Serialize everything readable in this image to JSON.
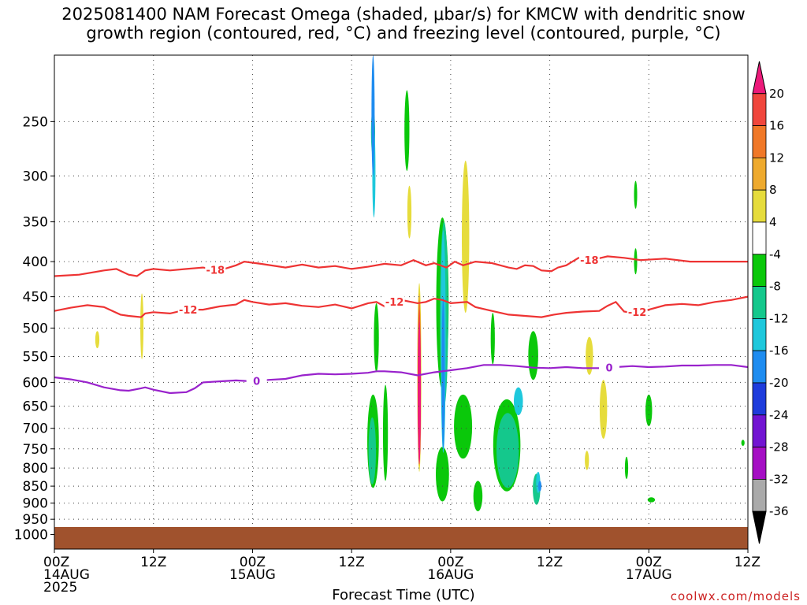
{
  "title": "2025081400 NAM Forecast Omega (shaded, μbar/s) for KMCW with dendritic snow\ngrowth region (contoured, red, °C) and freezing level (contoured, purple, °C)",
  "chart_data": {
    "type": "heatmap",
    "title": "2025081400 NAM Forecast Omega (shaded, μbar/s) for KMCW with dendritic snow growth region (contoured, red, °C) and freezing level (contoured, purple, °C)",
    "xlabel": "Forecast Time (UTC)",
    "x_hours_range": [
      0,
      84
    ],
    "x_ticks": [
      {
        "h": 0,
        "l1": "00Z",
        "l2": "14AUG",
        "l3": "2025"
      },
      {
        "h": 12,
        "l1": "12Z",
        "l2": "",
        "l3": ""
      },
      {
        "h": 24,
        "l1": "00Z",
        "l2": "15AUG",
        "l3": ""
      },
      {
        "h": 36,
        "l1": "12Z",
        "l2": "",
        "l3": ""
      },
      {
        "h": 48,
        "l1": "00Z",
        "l2": "16AUG",
        "l3": ""
      },
      {
        "h": 60,
        "l1": "12Z",
        "l2": "",
        "l3": ""
      },
      {
        "h": 72,
        "l1": "00Z",
        "l2": "17AUG",
        "l3": ""
      },
      {
        "h": 84,
        "l1": "12Z",
        "l2": "",
        "l3": ""
      }
    ],
    "y_label": "",
    "y_scale": "log-pressure",
    "y_range_hpa": [
      1050,
      200
    ],
    "y_ticks": [
      250,
      300,
      350,
      400,
      450,
      500,
      550,
      600,
      650,
      700,
      750,
      800,
      850,
      900,
      950,
      1000
    ],
    "grid": true,
    "colorbar": {
      "labels": [
        20,
        16,
        12,
        8,
        4,
        -4,
        -8,
        -12,
        -16,
        -20,
        -24,
        -28,
        -32,
        -36
      ],
      "colors": [
        "#ec1a7a",
        "#f0463c",
        "#f07828",
        "#eeaa2e",
        "#e6dc3c",
        "#ffffff",
        "#0ac80a",
        "#14c88c",
        "#1ec8dc",
        "#1e8cf0",
        "#1e3cdc",
        "#7214d2",
        "#a50fc4",
        "#aaaaaa",
        "#000000"
      ],
      "legend_location": "right"
    },
    "omega_regions": [
      {
        "level": -8,
        "h": 38.6,
        "p": 740,
        "dh": 1.4,
        "dp": 230
      },
      {
        "level": -8,
        "h": 39.0,
        "p": 520,
        "dh": 0.6,
        "dp": 120
      },
      {
        "level": -8,
        "h": 40.1,
        "p": 720,
        "dh": 0.6,
        "dp": 230
      },
      {
        "level": -8,
        "h": 42.7,
        "p": 260,
        "dh": 0.6,
        "dp": 70
      },
      {
        "level": -8,
        "h": 47.0,
        "p": 480,
        "dh": 1.5,
        "dp": 270
      },
      {
        "level": -8,
        "h": 47.0,
        "p": 820,
        "dh": 1.6,
        "dp": 150
      },
      {
        "level": -8,
        "h": 49.5,
        "p": 700,
        "dh": 2.2,
        "dp": 150
      },
      {
        "level": -8,
        "h": 51.3,
        "p": 880,
        "dh": 1.1,
        "dp": 90
      },
      {
        "level": -8,
        "h": 53.1,
        "p": 520,
        "dh": 0.5,
        "dp": 90
      },
      {
        "level": -8,
        "h": 54.8,
        "p": 750,
        "dh": 3.3,
        "dp": 230
      },
      {
        "level": -8,
        "h": 58.0,
        "p": 550,
        "dh": 1.2,
        "dp": 90
      },
      {
        "level": -8,
        "h": 70.4,
        "p": 320,
        "dh": 0.3,
        "dp": 30
      },
      {
        "level": -8,
        "h": 70.4,
        "p": 400,
        "dh": 0.3,
        "dp": 35
      },
      {
        "level": -8,
        "h": 72.0,
        "p": 660,
        "dh": 0.8,
        "dp": 70
      },
      {
        "level": -8,
        "h": 72.3,
        "p": 890,
        "dh": 0.9,
        "dp": 15
      },
      {
        "level": -8,
        "h": 69.3,
        "p": 800,
        "dh": 0.4,
        "dp": 60
      },
      {
        "level": -8,
        "h": 83.4,
        "p": 735,
        "dh": 0.4,
        "dp": 15
      },
      {
        "level": -12,
        "h": 38.6,
        "p": 260,
        "dh": 0.5,
        "dp": 40
      },
      {
        "level": -12,
        "h": 38.5,
        "p": 760,
        "dh": 0.9,
        "dp": 170
      },
      {
        "level": -12,
        "h": 47.2,
        "p": 500,
        "dh": 1.0,
        "dp": 300
      },
      {
        "level": -12,
        "h": 54.9,
        "p": 760,
        "dh": 2.7,
        "dp": 190
      },
      {
        "level": -12,
        "h": 58.4,
        "p": 860,
        "dh": 0.9,
        "dp": 90
      },
      {
        "level": -16,
        "h": 38.7,
        "p": 300,
        "dh": 0.3,
        "dp": 90
      },
      {
        "level": -16,
        "h": 47.1,
        "p": 560,
        "dh": 0.6,
        "dp": 400
      },
      {
        "level": -16,
        "h": 56.2,
        "p": 640,
        "dh": 1.1,
        "dp": 60
      },
      {
        "level": -16,
        "h": 58.6,
        "p": 840,
        "dh": 0.5,
        "dp": 60
      },
      {
        "level": -20,
        "h": 38.6,
        "p": 250,
        "dh": 0.25,
        "dp": 100
      },
      {
        "level": -20,
        "h": 47.1,
        "p": 600,
        "dh": 0.35,
        "dp": 300
      },
      {
        "level": -20,
        "h": 58.8,
        "p": 850,
        "dh": 0.3,
        "dp": 30
      },
      {
        "level": 4,
        "h": 5.2,
        "p": 520,
        "dh": 0.5,
        "dp": 30
      },
      {
        "level": 4,
        "h": 10.6,
        "p": 500,
        "dh": 0.3,
        "dp": 110
      },
      {
        "level": 4,
        "h": 43.0,
        "p": 340,
        "dh": 0.5,
        "dp": 60
      },
      {
        "level": 4,
        "h": 44.2,
        "p": 620,
        "dh": 0.5,
        "dp": 380
      },
      {
        "level": 4,
        "h": 49.8,
        "p": 380,
        "dh": 0.9,
        "dp": 190
      },
      {
        "level": 4,
        "h": 64.8,
        "p": 550,
        "dh": 0.9,
        "dp": 70
      },
      {
        "level": 4,
        "h": 66.5,
        "p": 660,
        "dh": 0.9,
        "dp": 130
      },
      {
        "level": 4,
        "h": 64.5,
        "p": 780,
        "dh": 0.5,
        "dp": 50
      },
      {
        "level": 8,
        "h": 44.2,
        "p": 620,
        "dh": 0.35,
        "dp": 350
      },
      {
        "level": 12,
        "h": 44.2,
        "p": 620,
        "dh": 0.25,
        "dp": 330
      },
      {
        "level": 16,
        "h": 44.2,
        "p": 630,
        "dh": 0.2,
        "dp": 320
      },
      {
        "level": 20,
        "h": 44.2,
        "p": 640,
        "dh": 0.15,
        "dp": 300
      }
    ],
    "contours": [
      {
        "name": "-18",
        "color": "#ee3333",
        "label_h": [
          19.5,
          64.8
        ],
        "points": [
          [
            0,
            420
          ],
          [
            3,
            418
          ],
          [
            6,
            412
          ],
          [
            7.5,
            410
          ],
          [
            9,
            418
          ],
          [
            10,
            420
          ],
          [
            11,
            412
          ],
          [
            12,
            410
          ],
          [
            14,
            412
          ],
          [
            16,
            410
          ],
          [
            18,
            408
          ],
          [
            20,
            412
          ],
          [
            22,
            405
          ],
          [
            23,
            400
          ],
          [
            25,
            403
          ],
          [
            28,
            408
          ],
          [
            30,
            404
          ],
          [
            32,
            408
          ],
          [
            34,
            406
          ],
          [
            36,
            410
          ],
          [
            38,
            407
          ],
          [
            40,
            403
          ],
          [
            42,
            405
          ],
          [
            43.5,
            398
          ],
          [
            45,
            405
          ],
          [
            46,
            402
          ],
          [
            47.5,
            408
          ],
          [
            48.5,
            400
          ],
          [
            49.5,
            405
          ],
          [
            51,
            400
          ],
          [
            53,
            402
          ],
          [
            55,
            408
          ],
          [
            56,
            410
          ],
          [
            57,
            405
          ],
          [
            58,
            406
          ],
          [
            59,
            412
          ],
          [
            60.2,
            413
          ],
          [
            61,
            408
          ],
          [
            62,
            405
          ],
          [
            63.5,
            395
          ],
          [
            65,
            398
          ],
          [
            67,
            393
          ],
          [
            69,
            395
          ],
          [
            71,
            398
          ],
          [
            74,
            396
          ],
          [
            77,
            400
          ],
          [
            80,
            400
          ],
          [
            84,
            400
          ]
        ]
      },
      {
        "name": "-12",
        "color": "#ee3333",
        "label_h": [
          16.2,
          41.2,
          70.6
        ],
        "points": [
          [
            0,
            472
          ],
          [
            2,
            467
          ],
          [
            4,
            463
          ],
          [
            6,
            466
          ],
          [
            8,
            478
          ],
          [
            9,
            480
          ],
          [
            10.5,
            482
          ],
          [
            11,
            476
          ],
          [
            12,
            474
          ],
          [
            14,
            476
          ],
          [
            16,
            470
          ],
          [
            18,
            470
          ],
          [
            20,
            465
          ],
          [
            22,
            462
          ],
          [
            23,
            455
          ],
          [
            24,
            458
          ],
          [
            26,
            462
          ],
          [
            28,
            460
          ],
          [
            30,
            464
          ],
          [
            32,
            466
          ],
          [
            34,
            462
          ],
          [
            36,
            468
          ],
          [
            38,
            460
          ],
          [
            39,
            458
          ],
          [
            40,
            465
          ],
          [
            41,
            458
          ],
          [
            42,
            455
          ],
          [
            44,
            460
          ],
          [
            45,
            458
          ],
          [
            46,
            453
          ],
          [
            47,
            455
          ],
          [
            48,
            460
          ],
          [
            50,
            458
          ],
          [
            51,
            466
          ],
          [
            53,
            472
          ],
          [
            55,
            478
          ],
          [
            57,
            480
          ],
          [
            59,
            482
          ],
          [
            60.5,
            478
          ],
          [
            62,
            475
          ],
          [
            64,
            473
          ],
          [
            66,
            472
          ],
          [
            67,
            464
          ],
          [
            68,
            458
          ],
          [
            69,
            473
          ],
          [
            70,
            475
          ],
          [
            72,
            470
          ],
          [
            74,
            463
          ],
          [
            76,
            461
          ],
          [
            78,
            463
          ],
          [
            80,
            458
          ],
          [
            82,
            455
          ],
          [
            84,
            450
          ]
        ]
      },
      {
        "name": "0",
        "color": "#9922cc",
        "label_h": [
          24.5,
          67.2
        ],
        "points": [
          [
            0,
            590
          ],
          [
            2,
            594
          ],
          [
            4,
            600
          ],
          [
            6,
            610
          ],
          [
            8,
            616
          ],
          [
            9,
            617
          ],
          [
            10.5,
            612
          ],
          [
            11,
            610
          ],
          [
            12,
            615
          ],
          [
            14,
            622
          ],
          [
            16,
            620
          ],
          [
            17,
            612
          ],
          [
            18,
            600
          ],
          [
            20,
            598
          ],
          [
            22,
            596
          ],
          [
            24,
            598
          ],
          [
            26,
            595
          ],
          [
            28,
            593
          ],
          [
            30,
            586
          ],
          [
            32,
            583
          ],
          [
            34,
            584
          ],
          [
            36,
            583
          ],
          [
            38,
            581
          ],
          [
            39,
            578
          ],
          [
            40,
            578
          ],
          [
            42,
            580
          ],
          [
            44,
            586
          ],
          [
            46,
            580
          ],
          [
            48,
            576
          ],
          [
            50,
            572
          ],
          [
            52,
            566
          ],
          [
            54,
            566
          ],
          [
            56,
            568
          ],
          [
            58,
            571
          ],
          [
            60,
            572
          ],
          [
            62,
            570
          ],
          [
            64,
            572
          ],
          [
            66,
            572
          ],
          [
            68,
            570
          ],
          [
            70,
            568
          ],
          [
            72,
            570
          ],
          [
            74,
            569
          ],
          [
            76,
            567
          ],
          [
            78,
            567
          ],
          [
            80,
            566
          ],
          [
            82,
            566
          ],
          [
            84,
            570
          ]
        ]
      }
    ],
    "freezing_label": "0",
    "surface_hpa": 975
  },
  "xlabel": "Forecast Time (UTC)",
  "credit": "coolwx.com/models"
}
